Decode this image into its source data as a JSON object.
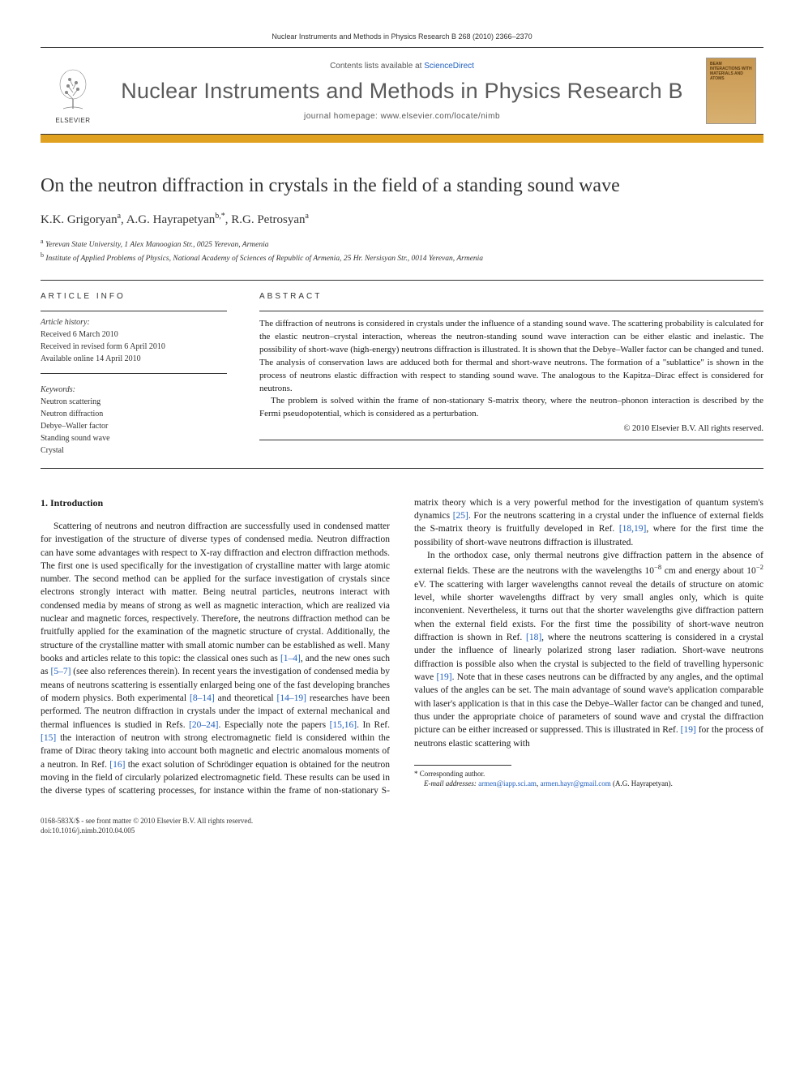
{
  "running_head": "Nuclear Instruments and Methods in Physics Research B 268 (2010) 2366–2370",
  "masthead": {
    "publisher": "ELSEVIER",
    "contents_prefix": "Contents lists available at ",
    "contents_link": "ScienceDirect",
    "journal_title": "Nuclear Instruments and Methods in Physics Research B",
    "homepage_label": "journal homepage: www.elsevier.com/locate/nimb",
    "cover_text": "BEAM INTERACTIONS WITH MATERIALS AND ATOMS"
  },
  "article": {
    "title": "On the neutron diffraction in crystals in the field of a standing sound wave",
    "authors_html": "K.K. Grigoryan<sup>a</sup>, A.G. Hayrapetyan<sup>b,*</sup>, R.G. Petrosyan<sup>a</sup>",
    "affiliations": [
      {
        "marker": "a",
        "text": "Yerevan State University, 1 Alex Manoogian Str., 0025 Yerevan, Armenia"
      },
      {
        "marker": "b",
        "text": "Institute of Applied Problems of Physics, National Academy of Sciences of Republic of Armenia, 25 Hr. Nersisyan Str., 0014 Yerevan, Armenia"
      }
    ]
  },
  "info": {
    "heading": "ARTICLE INFO",
    "history_label": "Article history:",
    "history": [
      "Received 6 March 2010",
      "Received in revised form 6 April 2010",
      "Available online 14 April 2010"
    ],
    "keywords_label": "Keywords:",
    "keywords": [
      "Neutron scattering",
      "Neutron diffraction",
      "Debye–Waller factor",
      "Standing sound wave",
      "Crystal"
    ]
  },
  "abstract": {
    "heading": "ABSTRACT",
    "paragraphs": [
      "The diffraction of neutrons is considered in crystals under the influence of a standing sound wave. The scattering probability is calculated for the elastic neutron–crystal interaction, whereas the neutron-standing sound wave interaction can be either elastic and inelastic. The possibility of short-wave (high-energy) neutrons diffraction is illustrated. It is shown that the Debye–Waller factor can be changed and tuned. The analysis of conservation laws are adduced both for thermal and short-wave neutrons. The formation of a \"sublattice\" is shown in the process of neutrons elastic diffraction with respect to standing sound wave. The analogous to the Kapitza–Dirac effect is considered for neutrons.",
      "The problem is solved within the frame of non-stationary S-matrix theory, where the neutron–phonon interaction is described by the Fermi pseudopotential, which is considered as a perturbation."
    ],
    "copyright": "© 2010 Elsevier B.V. All rights reserved."
  },
  "body": {
    "section_number": "1.",
    "section_title": "Introduction",
    "p1a": "Scattering of neutrons and neutron diffraction are successfully used in condensed matter for investigation of the structure of diverse types of condensed media. Neutron diffraction can have some advantages with respect to X-ray diffraction and electron diffraction methods. The first one is used specifically for the investigation of crystalline matter with large atomic number. The second method can be applied for the surface investigation of crystals since electrons strongly interact with matter. Being neutral particles, neutrons interact with condensed media by means of strong as well as magnetic interaction, which are realized via nuclear and magnetic forces, respectively. Therefore, the neutrons diffraction method can be fruitfully applied for the examination of the magnetic structure of crystal. Additionally, the structure of the crystalline matter with small atomic number can be established as well. Many books and articles relate to this topic: the classical ones such as ",
    "ref_1_4": "[1–4]",
    "p1b": ", and the new ones such as ",
    "ref_5_7": "[5–7]",
    "p1c": " (see also references therein). In recent years the investigation of condensed media by means of neutrons scattering is essentially enlarged being one of the fast developing branches of modern physics. Both experimental ",
    "ref_8_14": "[8–14]",
    "p1d": " and theoretical ",
    "ref_14_19": "[14–19]",
    "p1e": " researches have been performed. The neutron diffraction in crystals under the impact of external mechanical and thermal influences is studied in Refs. ",
    "ref_20_24": "[20–24]",
    "p1f": ". Especially note the papers ",
    "ref_15_16": "[15,16]",
    "p1g": ". In Ref. ",
    "ref_15": "[15]",
    "p1h": " the interaction of neutron with strong electromagnetic field is considered within the frame of Dirac theory taking into account both magnetic ",
    "p1i": "and electric anomalous moments of a neutron. In Ref. ",
    "ref_16": "[16]",
    "p1j": " the exact solution of Schrödinger equation is obtained for the neutron moving in the field of circularly polarized electromagnetic field. These results can be used in the diverse types of scattering processes, for instance within the frame of non-stationary S-matrix theory which is a very powerful method for the investigation of quantum system's dynamics ",
    "ref_25": "[25]",
    "p1k": ". For the neutrons scattering in a crystal under the influence of external fields the S-matrix theory is fruitfully developed in Ref. ",
    "ref_18_19": "[18,19]",
    "p1l": ", where for the first time the possibility of short-wave neutrons diffraction is illustrated.",
    "p2a": "In the orthodox case, only thermal neutrons give diffraction pattern in the absence of external fields. These are the neutrons with the wavelengths 10",
    "exp1": "−8",
    "p2b": " cm and energy about 10",
    "exp2": "−2",
    "p2c": " eV. The scattering with larger wavelengths cannot reveal the details of structure on atomic level, while shorter wavelengths diffract by very small angles only, which is quite inconvenient. Nevertheless, it turns out that the shorter wavelengths give diffraction pattern when the external field exists. For the first time the possibility of short-wave neutron diffraction is shown in Ref. ",
    "ref_18": "[18]",
    "p2d": ", where the neutrons scattering is considered in a crystal under the influence of linearly polarized strong laser radiation. Short-wave neutrons diffraction is possible also when the crystal is subjected to the field of travelling hypersonic wave ",
    "ref_19": "[19]",
    "p2e": ". Note that in these cases neutrons can be diffracted by any angles, and the optimal values of the angles can be set. The main advantage of sound wave's application comparable with laser's application is that in this case the Debye–Waller factor can be changed and tuned, thus under the appropriate choice of parameters of sound wave and crystal the diffraction picture can be either increased or suppressed. This is illustrated in Ref. ",
    "ref_19b": "[19]",
    "p2f": " for the process of neutrons elastic scattering with"
  },
  "footnotes": {
    "corr_marker": "*",
    "corr_label": "Corresponding author.",
    "email_label": "E-mail addresses:",
    "email1": "armen@iapp.sci.am",
    "email_sep": ", ",
    "email2": "armen.hayr@gmail.com",
    "email_author": " (A.G. Hayrapetyan)."
  },
  "footer": {
    "line1": "0168-583X/$ - see front matter © 2010 Elsevier B.V. All rights reserved.",
    "line2": "doi:10.1016/j.nimb.2010.04.005"
  },
  "colors": {
    "accent": "#e0a020",
    "link": "#2060c0",
    "text": "#1a1a1a",
    "rule": "#333333"
  }
}
